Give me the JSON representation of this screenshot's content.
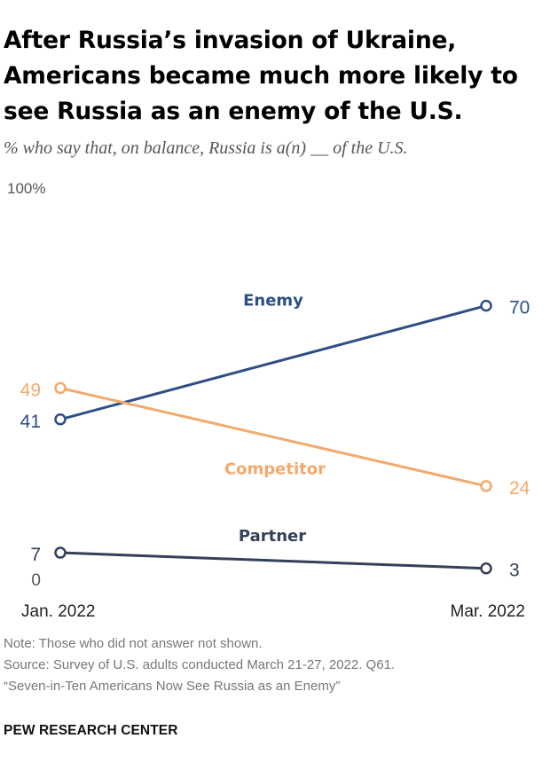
{
  "title": "After Russia’s invasion of Ukraine, Americans became much more likely to see Russia as an enemy of the U.S.",
  "subtitle": "% who say that, on balance, Russia is a(n) __ of the U.S.",
  "chart_data": {
    "type": "line",
    "x": [
      "Jan. 2022",
      "Mar. 2022"
    ],
    "ylim": [
      0,
      100
    ],
    "y_top_label": "100%",
    "y_bottom_label": "0",
    "grid": false,
    "series": [
      {
        "name": "Enemy",
        "values": [
          41,
          70
        ],
        "labels": [
          "41",
          "70"
        ],
        "color": "#2d4f85"
      },
      {
        "name": "Competitor",
        "values": [
          49,
          24
        ],
        "labels": [
          "49",
          "24"
        ],
        "color": "#f2a96c"
      },
      {
        "name": "Partner",
        "values": [
          7,
          3
        ],
        "labels": [
          "7",
          "3"
        ],
        "color": "#33405a"
      }
    ]
  },
  "notes": {
    "note": "Note: Those who did not answer not shown.",
    "source": "Source: Survey of U.S. adults conducted March 21-27, 2022. Q61.",
    "report": "“Seven-in-Ten Americans Now See Russia as an Enemy”"
  },
  "brand": "PEW RESEARCH CENTER"
}
